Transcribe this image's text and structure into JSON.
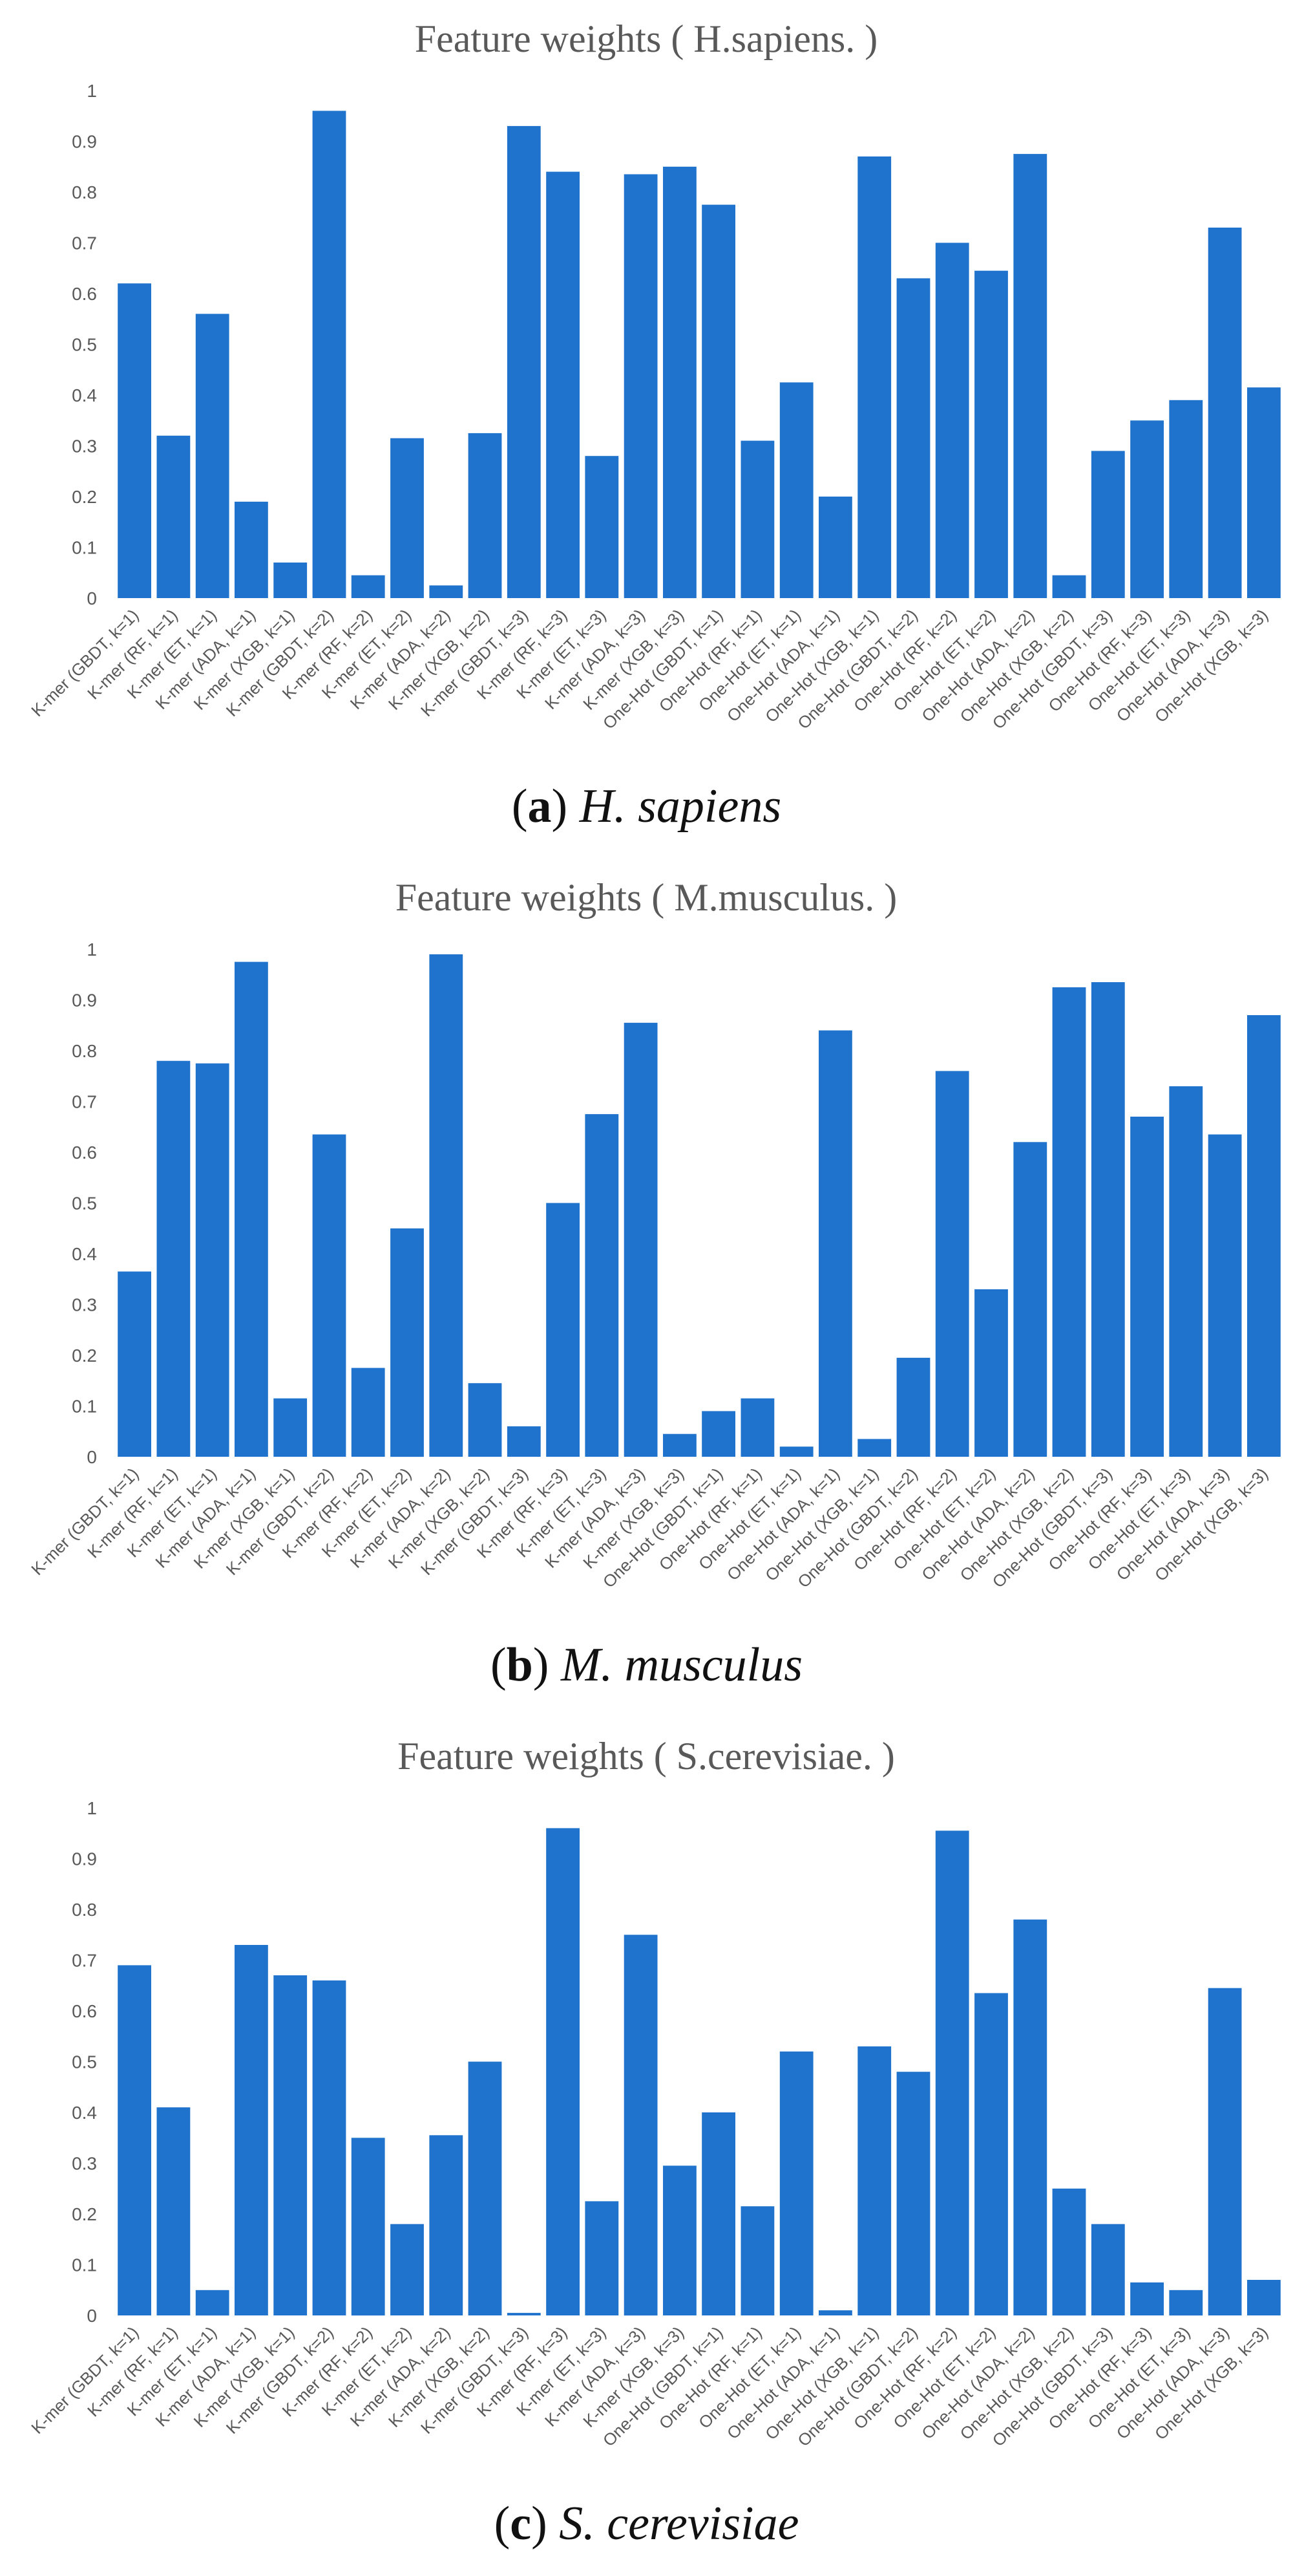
{
  "bar_color": "#1f73cc",
  "chart_data": [
    {
      "type": "bar",
      "title": "Feature weights ( H.sapiens. )",
      "caption_letter": "a",
      "caption_species": "H. sapiens",
      "ylim": [
        0,
        1
      ],
      "yticks": [
        "0",
        "0.1",
        "0.2",
        "0.3",
        "0.4",
        "0.5",
        "0.6",
        "0.7",
        "0.8",
        "0.9",
        "1"
      ],
      "categories": [
        "K-mer (GBDT, k=1)",
        "K-mer (RF, k=1)",
        "K-mer (ET, k=1)",
        "K-mer (ADA, k=1)",
        "K-mer (XGB, k=1)",
        "K-mer (GBDT, k=2)",
        "K-mer (RF, k=2)",
        "K-mer (ET, k=2)",
        "K-mer (ADA, k=2)",
        "K-mer (XGB, k=2)",
        "K-mer (GBDT, k=3)",
        "K-mer (RF, k=3)",
        "K-mer (ET, k=3)",
        "K-mer (ADA, k=3)",
        "K-mer (XGB, k=3)",
        "One-Hot (GBDT, k=1)",
        "One-Hot (RF, k=1)",
        "One-Hot (ET, k=1)",
        "One-Hot (ADA, k=1)",
        "One-Hot (XGB, k=1)",
        "One-Hot (GBDT, k=2)",
        "One-Hot (RF, k=2)",
        "One-Hot (ET, k=2)",
        "One-Hot (ADA, k=2)",
        "One-Hot (XGB, k=2)",
        "One-Hot (GBDT, k=3)",
        "One-Hot (RF, k=3)",
        "One-Hot (ET, k=3)",
        "One-Hot (ADA, k=3)",
        "One-Hot (XGB, k=3)"
      ],
      "values": [
        0.62,
        0.32,
        0.56,
        0.19,
        0.07,
        0.96,
        0.045,
        0.315,
        0.025,
        0.325,
        0.93,
        0.84,
        0.28,
        0.835,
        0.85,
        0.775,
        0.31,
        0.425,
        0.2,
        0.87,
        0.63,
        0.7,
        0.645,
        0.875,
        0.045,
        0.29,
        0.35,
        0.39,
        0.73,
        0.415
      ]
    },
    {
      "type": "bar",
      "title": "Feature weights ( M.musculus. )",
      "caption_letter": "b",
      "caption_species": "M. musculus",
      "ylim": [
        0,
        1
      ],
      "yticks": [
        "0",
        "0.1",
        "0.2",
        "0.3",
        "0.4",
        "0.5",
        "0.6",
        "0.7",
        "0.8",
        "0.9",
        "1"
      ],
      "categories": [
        "K-mer (GBDT, k=1)",
        "K-mer (RF, k=1)",
        "K-mer (ET, k=1)",
        "K-mer (ADA, k=1)",
        "K-mer (XGB, k=1)",
        "K-mer (GBDT, k=2)",
        "K-mer (RF, k=2)",
        "K-mer (ET, k=2)",
        "K-mer (ADA, k=2)",
        "K-mer (XGB, k=2)",
        "K-mer (GBDT, k=3)",
        "K-mer (RF, k=3)",
        "K-mer (ET, k=3)",
        "K-mer (ADA, k=3)",
        "K-mer (XGB, k=3)",
        "One-Hot (GBDT, k=1)",
        "One-Hot (RF, k=1)",
        "One-Hot (ET, k=1)",
        "One-Hot (ADA, k=1)",
        "One-Hot (XGB, k=1)",
        "One-Hot (GBDT, k=2)",
        "One-Hot (RF, k=2)",
        "One-Hot (ET, k=2)",
        "One-Hot (ADA, k=2)",
        "One-Hot (XGB, k=2)",
        "One-Hot (GBDT, k=3)",
        "One-Hot (RF, k=3)",
        "One-Hot (ET, k=3)",
        "One-Hot (ADA, k=3)",
        "One-Hot (XGB, k=3)"
      ],
      "values": [
        0.365,
        0.78,
        0.775,
        0.975,
        0.115,
        0.635,
        0.175,
        0.45,
        0.99,
        0.145,
        0.06,
        0.5,
        0.675,
        0.855,
        0.045,
        0.09,
        0.115,
        0.02,
        0.84,
        0.035,
        0.195,
        0.76,
        0.33,
        0.62,
        0.925,
        0.935,
        0.67,
        0.73,
        0.635,
        0.87
      ]
    },
    {
      "type": "bar",
      "title": "Feature weights ( S.cerevisiae. )",
      "caption_letter": "c",
      "caption_species": "S. cerevisiae",
      "ylim": [
        0,
        1
      ],
      "yticks": [
        "0",
        "0.1",
        "0.2",
        "0.3",
        "0.4",
        "0.5",
        "0.6",
        "0.7",
        "0.8",
        "0.9",
        "1"
      ],
      "categories": [
        "K-mer (GBDT, k=1)",
        "K-mer (RF, k=1)",
        "K-mer (ET, k=1)",
        "K-mer (ADA, k=1)",
        "K-mer (XGB, k=1)",
        "K-mer (GBDT, k=2)",
        "K-mer (RF, k=2)",
        "K-mer (ET, k=2)",
        "K-mer (ADA, k=2)",
        "K-mer (XGB, k=2)",
        "K-mer (GBDT, k=3)",
        "K-mer (RF, k=3)",
        "K-mer (ET, k=3)",
        "K-mer (ADA, k=3)",
        "K-mer (XGB, k=3)",
        "One-Hot (GBDT, k=1)",
        "One-Hot (RF, k=1)",
        "One-Hot (ET, k=1)",
        "One-Hot (ADA, k=1)",
        "One-Hot (XGB, k=1)",
        "One-Hot (GBDT, k=2)",
        "One-Hot (RF, k=2)",
        "One-Hot (ET, k=2)",
        "One-Hot (ADA, k=2)",
        "One-Hot (XGB, k=2)",
        "One-Hot (GBDT, k=3)",
        "One-Hot (RF, k=3)",
        "One-Hot (ET, k=3)",
        "One-Hot (ADA, k=3)",
        "One-Hot (XGB, k=3)"
      ],
      "values": [
        0.69,
        0.41,
        0.05,
        0.73,
        0.67,
        0.66,
        0.35,
        0.18,
        0.355,
        0.5,
        0.005,
        0.96,
        0.225,
        0.75,
        0.295,
        0.4,
        0.215,
        0.52,
        0.01,
        0.53,
        0.48,
        0.955,
        0.635,
        0.78,
        0.25,
        0.18,
        0.065,
        0.05,
        0.645,
        0.07
      ]
    }
  ]
}
